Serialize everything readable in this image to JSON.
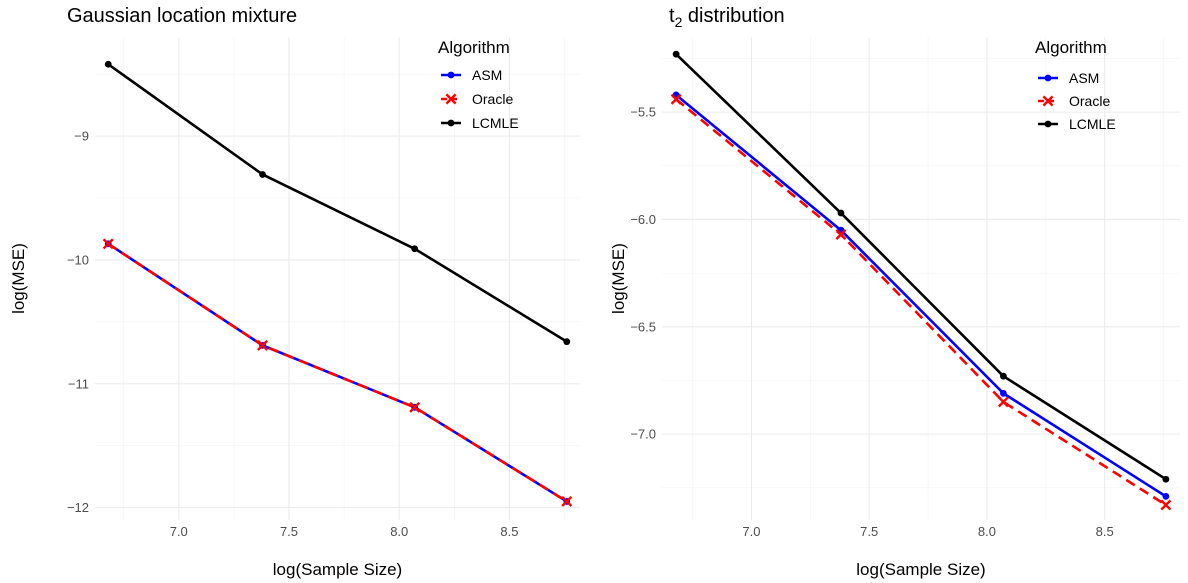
{
  "chart_data": [
    {
      "type": "line",
      "title": "Gaussian location mixture",
      "title_sub": "",
      "title_rest": "",
      "xlabel": "log(Sample Size)",
      "ylabel": "log(MSE)",
      "xlim": [
        6.62,
        8.82
      ],
      "ylim": [
        -12.1,
        -8.2
      ],
      "x_ticks": [
        7.0,
        7.5,
        8.0,
        8.5
      ],
      "x_tick_labels": [
        "7.0",
        "7.5",
        "8.0",
        "8.5"
      ],
      "y_ticks": [
        -9,
        -10,
        -11,
        -12
      ],
      "y_tick_labels": [
        "−9",
        "−10",
        "−11",
        "−12"
      ],
      "grid": true,
      "legend_title": "Algorithm",
      "legend_position": "top-right",
      "x": [
        6.68,
        7.38,
        8.07,
        8.76
      ],
      "series": [
        {
          "name": "ASM",
          "values": [
            -9.87,
            -10.69,
            -11.19,
            -11.95
          ],
          "color": "#0000ff",
          "dash": "solid",
          "marker": "circle"
        },
        {
          "name": "Oracle",
          "values": [
            -9.87,
            -10.69,
            -11.19,
            -11.95
          ],
          "color": "#ff0000",
          "dash": "dashed",
          "marker": "cross"
        },
        {
          "name": "LCMLE",
          "values": [
            -8.42,
            -9.31,
            -9.91,
            -10.66
          ],
          "color": "#000000",
          "dash": "solid",
          "marker": "circle"
        }
      ]
    },
    {
      "type": "line",
      "title": "t",
      "title_sub": "2",
      "title_rest": " distribution",
      "xlabel": "log(Sample Size)",
      "ylabel": "log(MSE)",
      "xlim": [
        6.62,
        8.82
      ],
      "ylim": [
        -7.4,
        -5.15
      ],
      "x_ticks": [
        7.0,
        7.5,
        8.0,
        8.5
      ],
      "x_tick_labels": [
        "7.0",
        "7.5",
        "8.0",
        "8.5"
      ],
      "y_ticks": [
        -5.5,
        -6.0,
        -6.5,
        -7.0
      ],
      "y_tick_labels": [
        "−5.5",
        "−6.0",
        "−6.5",
        "−7.0"
      ],
      "grid": true,
      "legend_title": "Algorithm",
      "legend_position": "top-right",
      "x": [
        6.68,
        7.38,
        8.07,
        8.76
      ],
      "series": [
        {
          "name": "ASM",
          "values": [
            -5.42,
            -6.05,
            -6.81,
            -7.29
          ],
          "color": "#0000ff",
          "dash": "solid",
          "marker": "circle"
        },
        {
          "name": "Oracle",
          "values": [
            -5.44,
            -6.07,
            -6.85,
            -7.33
          ],
          "color": "#ff0000",
          "dash": "dashed",
          "marker": "cross"
        },
        {
          "name": "LCMLE",
          "values": [
            -5.23,
            -5.97,
            -6.73,
            -7.21
          ],
          "color": "#000000",
          "dash": "solid",
          "marker": "circle"
        }
      ]
    }
  ]
}
